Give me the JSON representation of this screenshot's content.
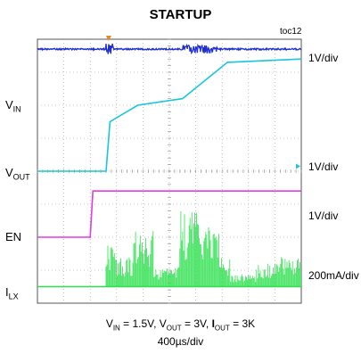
{
  "title": "STARTUP",
  "figure_id": "toc12",
  "channels": [
    {
      "key": "vin",
      "label_main": "V",
      "label_sub": "IN",
      "scale": "1V/div",
      "color": "#1f2fd0"
    },
    {
      "key": "vout",
      "label_main": "V",
      "label_sub": "OUT",
      "scale": "1V/div",
      "color": "#19c6dc"
    },
    {
      "key": "en",
      "label_main": "EN",
      "label_sub": "",
      "scale": "1V/div",
      "color": "#e03ce0"
    },
    {
      "key": "ilx",
      "label_main": "I",
      "label_sub": "LX",
      "scale": "200mA/div",
      "color": "#2ee04e"
    }
  ],
  "caption": {
    "p1": "V",
    "s1": "IN",
    "p2": " = 1.5V, V",
    "s2": "OUT",
    "p3": " = 3V, ",
    "p4b": "I",
    "s4": "OUT",
    "p5": " = 3K"
  },
  "timebase": "400µs/div",
  "chart_data": {
    "type": "line",
    "x_divisions": 10,
    "y_divisions": 8,
    "grid": true,
    "x_range_div": [
      0,
      10
    ],
    "series": [
      {
        "name": "VIN",
        "x": [
          0,
          10
        ],
        "y": [
          7.7,
          7.7
        ]
      },
      {
        "name": "VOUT",
        "x": [
          0,
          2.6,
          2.75,
          3.8,
          5.5,
          7.2,
          10
        ],
        "y": [
          4.0,
          4.0,
          5.5,
          6.0,
          6.2,
          7.3,
          7.4
        ]
      },
      {
        "name": "EN",
        "x": [
          0,
          2.0,
          2.1,
          10
        ],
        "y": [
          2.0,
          2.0,
          3.4,
          3.4
        ]
      },
      {
        "name": "ILX",
        "x": [
          0,
          2.6,
          10
        ],
        "y": [
          0.5,
          0.5,
          0.5
        ]
      }
    ]
  }
}
